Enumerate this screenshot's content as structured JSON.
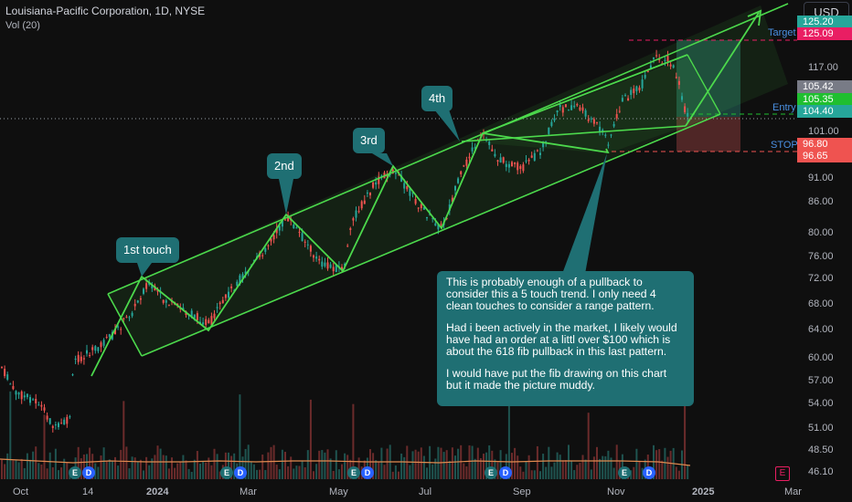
{
  "header": {
    "title": "Louisiana-Pacific Corporation, 1D, NYSE",
    "indicator": "Vol (20)"
  },
  "currency_button": "USD",
  "axis": {
    "y_ticks": [
      "117.00",
      "101.00",
      "91.00",
      "86.00",
      "80.00",
      "76.00",
      "72.00",
      "68.00",
      "64.00",
      "60.00",
      "57.00",
      "54.00",
      "51.00",
      "48.50",
      "46.10"
    ],
    "x_ticks": [
      "Oct",
      "14",
      "2024",
      "Mar",
      "May",
      "Jul",
      "Sep",
      "Nov",
      "2025",
      "Mar"
    ]
  },
  "price_labels": [
    {
      "text": "125.20",
      "color": "#26a69a"
    },
    {
      "text": "125.09",
      "color": "#e91e63"
    },
    {
      "text": "105.42",
      "color": "#787b86"
    },
    {
      "text": "105.35",
      "color": "#1fbf2f"
    },
    {
      "text": "104.40",
      "color": "#26a69a"
    },
    {
      "text": "96.80",
      "color": "#ef5350"
    },
    {
      "text": "96.65",
      "color": "#ef5350"
    }
  ],
  "side_labels": {
    "target": "Target",
    "entry": "Entry",
    "stop": "STOP"
  },
  "callouts": [
    "1st touch",
    "2nd",
    "3rd",
    "4th"
  ],
  "note": {
    "paragraphs": [
      "This is probably enough of a pullback to consider this a 5 touch trend. I only need 4 clean touches to consider a range pattern.",
      "Had i been actively in the market, I likely would have had an order at a littl over $100 which is about the 618 fib pullback in this last pattern.",
      "I would have put the fib drawing on this chart but it made the picture muddy."
    ]
  },
  "earnings_badges": [
    "E",
    "D",
    "E",
    "D",
    "E",
    "D",
    "E",
    "D",
    "E",
    "D"
  ],
  "earnings_box": "E",
  "colors": {
    "up": "#26a69a",
    "down": "#ef5350",
    "channel": "#4cd94c",
    "callout": "#1f6f73"
  }
}
